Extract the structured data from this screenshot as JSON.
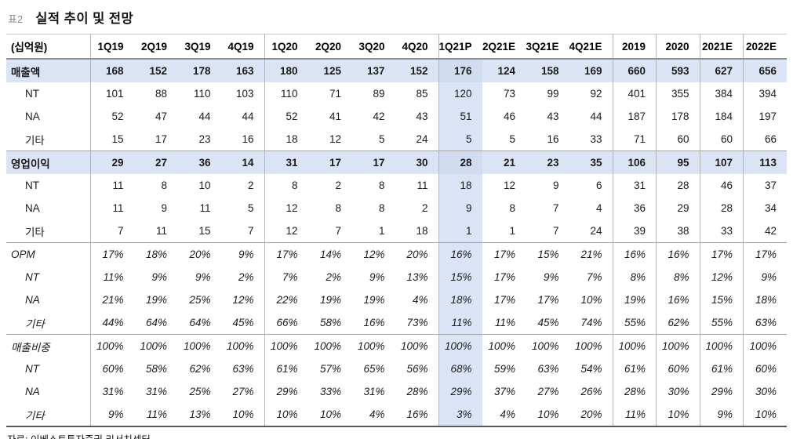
{
  "title": {
    "tag_label": "표2",
    "text": "실적 추이 및 전망"
  },
  "colors": {
    "row_highlight": "#dbe4f5",
    "col_highlight": "#dbe3f6",
    "intersection_highlight": "#d1dcf0"
  },
  "table": {
    "corner_label": "(십억원)",
    "columns": [
      "1Q19",
      "2Q19",
      "3Q19",
      "4Q19",
      "1Q20",
      "2Q20",
      "3Q20",
      "4Q20",
      "1Q21P",
      "2Q21E",
      "3Q21E",
      "4Q21E",
      "2019",
      "2020",
      "2021E",
      "2022E"
    ],
    "group_start_indices": [
      0,
      4,
      8,
      12,
      13,
      14,
      15
    ],
    "highlight_col_index": 8,
    "highlight_col_label": "1Q21P",
    "rows": [
      {
        "label": "매출액",
        "type": "section",
        "highlight": true,
        "sep": false,
        "values": [
          "168",
          "152",
          "178",
          "163",
          "180",
          "125",
          "137",
          "152",
          "176",
          "124",
          "158",
          "169",
          "660",
          "593",
          "627",
          "656"
        ]
      },
      {
        "label": "NT",
        "type": "sub",
        "highlight": false,
        "sep": false,
        "values": [
          "101",
          "88",
          "110",
          "103",
          "110",
          "71",
          "89",
          "85",
          "120",
          "73",
          "99",
          "92",
          "401",
          "355",
          "384",
          "394"
        ]
      },
      {
        "label": "NA",
        "type": "sub",
        "highlight": false,
        "sep": false,
        "values": [
          "52",
          "47",
          "44",
          "44",
          "52",
          "41",
          "42",
          "43",
          "51",
          "46",
          "43",
          "44",
          "187",
          "178",
          "184",
          "197"
        ]
      },
      {
        "label": "기타",
        "type": "sub",
        "highlight": false,
        "sep": false,
        "values": [
          "15",
          "17",
          "23",
          "16",
          "18",
          "12",
          "5",
          "24",
          "5",
          "5",
          "16",
          "33",
          "71",
          "60",
          "60",
          "66"
        ]
      },
      {
        "label": "영업이익",
        "type": "section",
        "highlight": true,
        "sep": true,
        "values": [
          "29",
          "27",
          "36",
          "14",
          "31",
          "17",
          "17",
          "30",
          "28",
          "21",
          "23",
          "35",
          "106",
          "95",
          "107",
          "113"
        ]
      },
      {
        "label": "NT",
        "type": "sub",
        "highlight": false,
        "sep": false,
        "values": [
          "11",
          "8",
          "10",
          "2",
          "8",
          "2",
          "8",
          "11",
          "18",
          "12",
          "9",
          "6",
          "31",
          "28",
          "46",
          "37"
        ]
      },
      {
        "label": "NA",
        "type": "sub",
        "highlight": false,
        "sep": false,
        "values": [
          "11",
          "9",
          "11",
          "5",
          "12",
          "8",
          "8",
          "2",
          "9",
          "8",
          "7",
          "4",
          "36",
          "29",
          "28",
          "34"
        ]
      },
      {
        "label": "기타",
        "type": "sub",
        "highlight": false,
        "sep": false,
        "values": [
          "7",
          "11",
          "15",
          "7",
          "12",
          "7",
          "1",
          "18",
          "1",
          "1",
          "7",
          "24",
          "39",
          "38",
          "33",
          "42"
        ]
      },
      {
        "label": "OPM",
        "type": "section-italic",
        "highlight": false,
        "sep": true,
        "values": [
          "17%",
          "18%",
          "20%",
          "9%",
          "17%",
          "14%",
          "12%",
          "20%",
          "16%",
          "17%",
          "15%",
          "21%",
          "16%",
          "16%",
          "17%",
          "17%"
        ]
      },
      {
        "label": "NT",
        "type": "sub-italic",
        "highlight": false,
        "sep": false,
        "values": [
          "11%",
          "9%",
          "9%",
          "2%",
          "7%",
          "2%",
          "9%",
          "13%",
          "15%",
          "17%",
          "9%",
          "7%",
          "8%",
          "8%",
          "12%",
          "9%"
        ]
      },
      {
        "label": "NA",
        "type": "sub-italic",
        "highlight": false,
        "sep": false,
        "values": [
          "21%",
          "19%",
          "25%",
          "12%",
          "22%",
          "19%",
          "19%",
          "4%",
          "18%",
          "17%",
          "17%",
          "10%",
          "19%",
          "16%",
          "15%",
          "18%"
        ]
      },
      {
        "label": "기타",
        "type": "sub-italic",
        "highlight": false,
        "sep": false,
        "values": [
          "44%",
          "64%",
          "64%",
          "45%",
          "66%",
          "58%",
          "16%",
          "73%",
          "11%",
          "11%",
          "45%",
          "74%",
          "55%",
          "62%",
          "55%",
          "63%"
        ]
      },
      {
        "label": "매출비중",
        "type": "section-italic",
        "highlight": false,
        "sep": true,
        "values": [
          "100%",
          "100%",
          "100%",
          "100%",
          "100%",
          "100%",
          "100%",
          "100%",
          "100%",
          "100%",
          "100%",
          "100%",
          "100%",
          "100%",
          "100%",
          "100%"
        ]
      },
      {
        "label": "NT",
        "type": "sub-italic",
        "highlight": false,
        "sep": false,
        "values": [
          "60%",
          "58%",
          "62%",
          "63%",
          "61%",
          "57%",
          "65%",
          "56%",
          "68%",
          "59%",
          "63%",
          "54%",
          "61%",
          "60%",
          "61%",
          "60%"
        ]
      },
      {
        "label": "NA",
        "type": "sub-italic",
        "highlight": false,
        "sep": false,
        "values": [
          "31%",
          "31%",
          "25%",
          "27%",
          "29%",
          "33%",
          "31%",
          "28%",
          "29%",
          "37%",
          "27%",
          "26%",
          "28%",
          "30%",
          "29%",
          "30%"
        ]
      },
      {
        "label": "기타",
        "type": "sub-italic",
        "highlight": false,
        "sep": false,
        "values": [
          "9%",
          "11%",
          "13%",
          "10%",
          "10%",
          "10%",
          "4%",
          "16%",
          "3%",
          "4%",
          "10%",
          "20%",
          "11%",
          "10%",
          "9%",
          "10%"
        ]
      }
    ]
  },
  "footer": {
    "source_text": "자료: 이베스트투자증권 리서치센터"
  }
}
